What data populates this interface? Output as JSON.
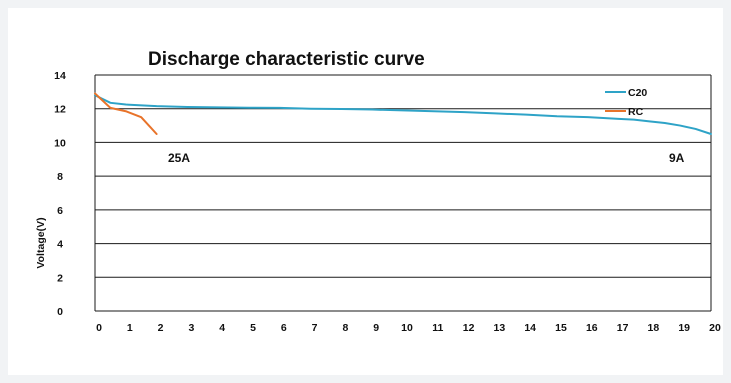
{
  "chart_data": {
    "type": "line",
    "title": "Discharge characteristic curve",
    "xlabel": "",
    "ylabel": "Voltage(V)",
    "xlim": [
      0,
      20
    ],
    "ylim": [
      0,
      14
    ],
    "x_ticks": [
      "0",
      "1",
      "2",
      "3",
      "4",
      "5",
      "6",
      "7",
      "8",
      "9",
      "10",
      "11",
      "12",
      "13",
      "14",
      "15",
      "16",
      "17",
      "18",
      "19",
      "20"
    ],
    "y_ticks": [
      "0",
      "2",
      "4",
      "6",
      "8",
      "10",
      "12",
      "14"
    ],
    "grid": "horizontal",
    "legend_position": "top-right",
    "series": [
      {
        "name": "C20",
        "color": "#2ea3c7",
        "x": [
          0,
          0.5,
          1,
          2,
          3,
          4,
          5,
          6,
          7,
          8,
          9,
          10,
          11,
          12,
          13,
          14,
          15,
          16,
          17,
          17.5,
          18,
          18.5,
          19,
          19.5,
          20
        ],
        "y": [
          12.8,
          12.35,
          12.25,
          12.15,
          12.1,
          12.08,
          12.06,
          12.05,
          12.0,
          11.98,
          11.95,
          11.9,
          11.85,
          11.8,
          11.72,
          11.65,
          11.55,
          11.5,
          11.4,
          11.35,
          11.25,
          11.15,
          11.0,
          10.8,
          10.5
        ],
        "label": "C20"
      },
      {
        "name": "RC",
        "color": "#e8732a",
        "x": [
          0,
          0.5,
          1,
          1.5,
          2
        ],
        "y": [
          12.9,
          12.05,
          11.85,
          11.5,
          10.5
        ],
        "label": "RC"
      }
    ],
    "annotations": [
      "25A",
      "9A"
    ]
  }
}
